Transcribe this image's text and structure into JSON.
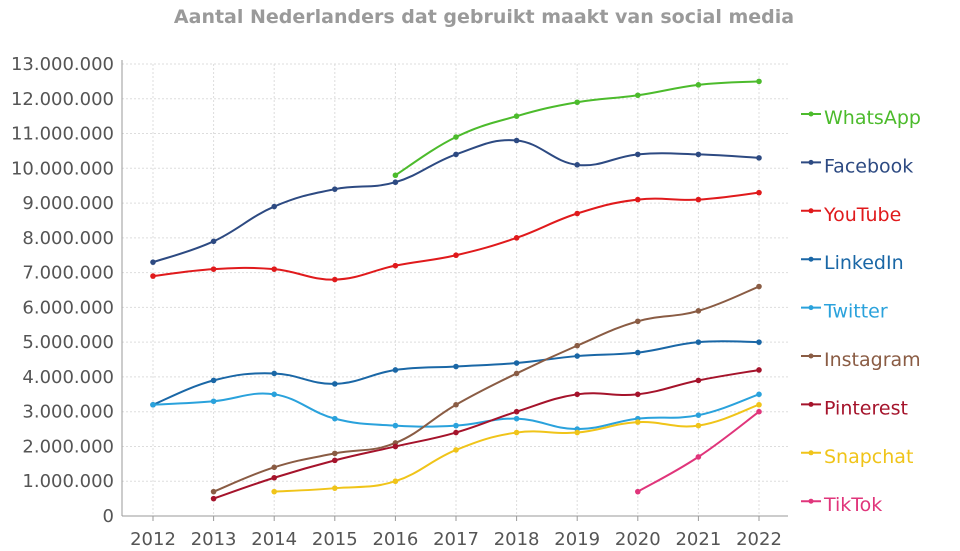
{
  "chart_data": {
    "type": "line",
    "title": "Aantal Nederlanders dat gebruikt maakt van social media",
    "xlabel": "",
    "ylabel": "",
    "x": [
      2012,
      2013,
      2014,
      2015,
      2016,
      2017,
      2018,
      2019,
      2020,
      2021,
      2022
    ],
    "x_tick_labels": [
      "2012",
      "2013",
      "2014",
      "2015",
      "2016",
      "2017",
      "2018",
      "2019",
      "2020",
      "2021",
      "2022"
    ],
    "ylim": [
      0,
      13000000
    ],
    "y_tick_labels": [
      "0",
      "1.000.000",
      "2.000.000",
      "3.000.000",
      "4.000.000",
      "5.000.000",
      "6.000.000",
      "7.000.000",
      "8.000.000",
      "9.000.000",
      "10.000.000",
      "11.000.000",
      "12.000.000",
      "13.000.000"
    ],
    "grid": true,
    "legend_position": "right",
    "series": [
      {
        "name": "WhatsApp",
        "color": "#4cbb2c",
        "values": [
          null,
          null,
          null,
          null,
          9800000,
          10900000,
          11500000,
          11900000,
          12100000,
          12400000,
          12500000
        ]
      },
      {
        "name": "Facebook",
        "color": "#2d4a82",
        "values": [
          7300000,
          7900000,
          8900000,
          9400000,
          9600000,
          10400000,
          10800000,
          10100000,
          10400000,
          10400000,
          10300000
        ]
      },
      {
        "name": "YouTube",
        "color": "#e01a1c",
        "values": [
          6900000,
          7100000,
          7100000,
          6800000,
          7200000,
          7500000,
          8000000,
          8700000,
          9100000,
          9100000,
          9300000
        ]
      },
      {
        "name": "LinkedIn",
        "color": "#1a67a6",
        "values": [
          3200000,
          3900000,
          4100000,
          3800000,
          4200000,
          4300000,
          4400000,
          4600000,
          4700000,
          5000000,
          5000000
        ]
      },
      {
        "name": "Twitter",
        "color": "#2aa2dc",
        "values": [
          3200000,
          3300000,
          3500000,
          2800000,
          2600000,
          2600000,
          2800000,
          2500000,
          2800000,
          2900000,
          3500000
        ]
      },
      {
        "name": "Instagram",
        "color": "#8a5c44",
        "values": [
          null,
          700000,
          1400000,
          1800000,
          2100000,
          3200000,
          4100000,
          4900000,
          5600000,
          5900000,
          6600000
        ]
      },
      {
        "name": "Pinterest",
        "color": "#a5132b",
        "values": [
          null,
          500000,
          1100000,
          1600000,
          2000000,
          2400000,
          3000000,
          3500000,
          3500000,
          3900000,
          4200000
        ]
      },
      {
        "name": "Snapchat",
        "color": "#f0c419",
        "values": [
          null,
          null,
          700000,
          800000,
          1000000,
          1900000,
          2400000,
          2400000,
          2700000,
          2600000,
          3200000
        ]
      },
      {
        "name": "TikTok",
        "color": "#e0357b",
        "values": [
          null,
          null,
          null,
          null,
          null,
          null,
          null,
          null,
          700000,
          1700000,
          3000000
        ]
      }
    ]
  }
}
